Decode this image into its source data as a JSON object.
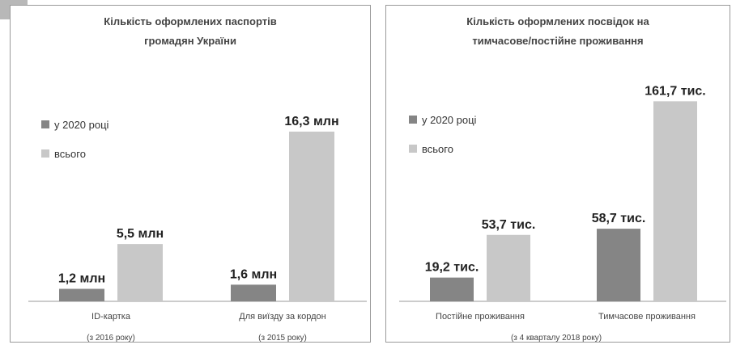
{
  "chart_data": [
    {
      "type": "bar",
      "title": "Кількість оформлених  паспортів громадян України",
      "title_lines": [
        "Кількість оформлених  паспортів",
        "громадян України"
      ],
      "categories": [
        "ID-картка",
        "Для виїзду за кордон"
      ],
      "category_notes": [
        "(з 2016 року)",
        "(з 2015 року)"
      ],
      "series": [
        {
          "name": "у 2020 році",
          "values": [
            1.2,
            1.6
          ],
          "labels": [
            "1,2 млн",
            "1,6 млн"
          ],
          "color": "#858585"
        },
        {
          "name": "всього",
          "values": [
            5.5,
            16.3
          ],
          "labels": [
            "5,5 млн",
            "16,3 млн"
          ],
          "color": "#c8c8c8"
        }
      ],
      "ylim": [
        0,
        18
      ],
      "legend": "left",
      "grid": false
    },
    {
      "type": "bar",
      "title": "Кількість оформлених посвідок на тимчасове/постійне проживання",
      "title_lines": [
        "Кількість оформлених посвідок на",
        "тимчасове/постійне проживання"
      ],
      "categories": [
        "Постійне проживання",
        "Тимчасове проживання"
      ],
      "axis_note": "(з 4 кварталу 2018 року)",
      "series": [
        {
          "name": "у 2020 році",
          "values": [
            19.2,
            58.7
          ],
          "labels": [
            "19,2 тис.",
            "58,7 тис."
          ],
          "color": "#858585"
        },
        {
          "name": "всього",
          "values": [
            53.7,
            161.7
          ],
          "labels": [
            "53,7 тис.",
            "161,7 тис."
          ],
          "color": "#c8c8c8"
        }
      ],
      "ylim": [
        0,
        175
      ],
      "legend": "left",
      "grid": false
    }
  ]
}
